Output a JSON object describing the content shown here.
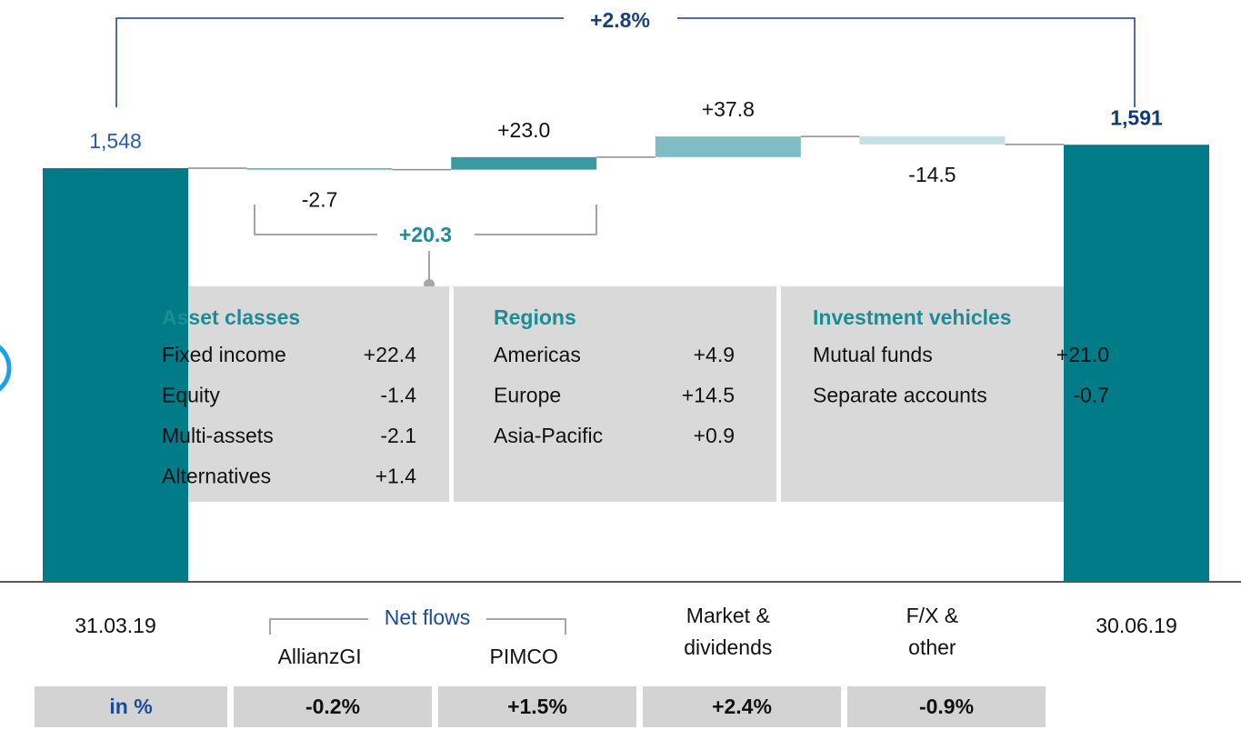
{
  "chart_data": {
    "type": "waterfall",
    "categories": [
      "31.03.19",
      "AllianzGI",
      "PIMCO",
      "Market & dividends",
      "F/X & other",
      "30.06.19"
    ],
    "values": [
      1548,
      -2.7,
      23.0,
      37.8,
      -14.5,
      1591
    ],
    "value_labels": [
      "1,548",
      "-2.7",
      "+23.0",
      "+37.8",
      "-14.5",
      "1,591"
    ],
    "colors": [
      "#007b87",
      "#5fb3b5",
      "#3a9aa1",
      "#7fbcc3",
      "#c4e0e4",
      "#007b87"
    ],
    "annotations": {
      "total_change": "+2.8%",
      "net_flows_sum": "+20.3",
      "net_flows_label": "Net flows"
    },
    "breakdown": [
      {
        "title": "Asset classes",
        "rows": [
          {
            "name": "Fixed income",
            "value": "+22.4"
          },
          {
            "name": "Equity",
            "value": "-1.4"
          },
          {
            "name": "Multi-assets",
            "value": "-2.1"
          },
          {
            "name": "Alternatives",
            "value": "+1.4"
          }
        ]
      },
      {
        "title": "Regions",
        "rows": [
          {
            "name": "Americas",
            "value": "+4.9"
          },
          {
            "name": "Europe",
            "value": "+14.5"
          },
          {
            "name": "Asia-Pacific",
            "value": "+0.9"
          }
        ]
      },
      {
        "title": "Investment vehicles",
        "rows": [
          {
            "name": "Mutual funds",
            "value": "+21.0"
          },
          {
            "name": "Separate accounts",
            "value": "-0.7"
          }
        ]
      }
    ],
    "percent_row": {
      "label": "in %",
      "values": [
        "-0.2%",
        "+1.5%",
        "+2.4%",
        "-0.9%"
      ]
    }
  }
}
